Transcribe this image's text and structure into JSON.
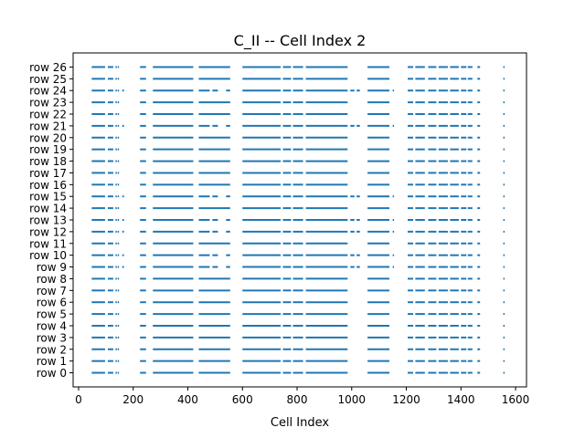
{
  "chart_data": {
    "type": "scatter",
    "title": "C_II -- Cell Index 2",
    "xlabel": "Cell Index",
    "ylabel": "",
    "xlim": [
      -20,
      1640
    ],
    "ylim": [
      -1.2,
      27.2
    ],
    "xticks": [
      0,
      200,
      400,
      600,
      800,
      1000,
      1200,
      1400,
      1600
    ],
    "x_tick_labels": [
      "0",
      "200",
      "400",
      "600",
      "800",
      "1000",
      "1200",
      "1400",
      "1600"
    ],
    "rows": [
      "row 0",
      "row 1",
      "row 2",
      "row 3",
      "row 4",
      "row 5",
      "row 6",
      "row 7",
      "row 8",
      "row 9",
      "row 10",
      "row 11",
      "row 12",
      "row 13",
      "row 14",
      "row 15",
      "row 16",
      "row 17",
      "row 18",
      "row 19",
      "row 20",
      "row 21",
      "row 22",
      "row 23",
      "row 24",
      "row 25",
      "row 26"
    ],
    "marker_color": "#1f77b4",
    "grid": false,
    "base_segments": [
      [
        48,
        97
      ],
      [
        107,
        127
      ],
      [
        135,
        139
      ],
      [
        143,
        147
      ],
      [
        225,
        247
      ],
      [
        272,
        420
      ],
      [
        440,
        555
      ],
      [
        600,
        740
      ],
      [
        748,
        778
      ],
      [
        785,
        822
      ],
      [
        832,
        985
      ],
      [
        1058,
        1138
      ],
      [
        1205,
        1225
      ],
      [
        1233,
        1268
      ],
      [
        1280,
        1310
      ],
      [
        1318,
        1352
      ],
      [
        1360,
        1392
      ],
      [
        1400,
        1420
      ],
      [
        1425,
        1442
      ],
      [
        1460,
        1470
      ],
      [
        1555,
        1559
      ]
    ],
    "variant_rows": [
      9,
      10,
      12,
      13,
      15,
      21,
      24
    ],
    "variant_segments": [
      [
        48,
        97
      ],
      [
        107,
        127
      ],
      [
        135,
        139
      ],
      [
        143,
        147
      ],
      [
        160,
        166
      ],
      [
        225,
        247
      ],
      [
        272,
        420
      ],
      [
        440,
        480
      ],
      [
        490,
        510
      ],
      [
        540,
        555
      ],
      [
        600,
        740
      ],
      [
        748,
        778
      ],
      [
        785,
        822
      ],
      [
        832,
        985
      ],
      [
        995,
        1010
      ],
      [
        1018,
        1030
      ],
      [
        1058,
        1138
      ],
      [
        1150,
        1155
      ],
      [
        1205,
        1225
      ],
      [
        1233,
        1268
      ],
      [
        1280,
        1310
      ],
      [
        1318,
        1352
      ],
      [
        1360,
        1392
      ],
      [
        1400,
        1420
      ],
      [
        1425,
        1442
      ],
      [
        1460,
        1470
      ],
      [
        1555,
        1559
      ]
    ]
  }
}
